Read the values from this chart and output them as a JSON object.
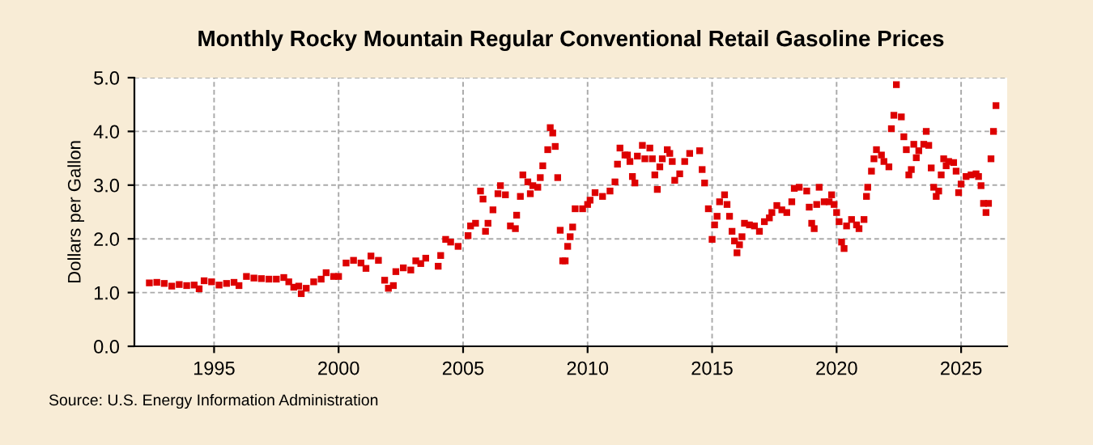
{
  "chart_data": {
    "type": "scatter",
    "title": "Monthly Rocky Mountain Regular Conventional Retail Gasoline Prices",
    "ylabel": "Dollars per Gallon",
    "annotations": [
      "Source: U.S. Energy Information Administration"
    ],
    "series": [
      {
        "color": "#dd0000",
        "x": [
          1992.4,
          1992.7,
          1993.0,
          1993.3,
          1993.6,
          1993.9,
          1994.2,
          1994.4,
          1994.6,
          1994.9,
          1995.2,
          1995.5,
          1995.8,
          1996.0,
          1996.3,
          1996.6,
          1996.9,
          1997.2,
          1997.5,
          1997.8,
          1998.0,
          1998.2,
          1998.4,
          1998.5,
          1998.7,
          1999.0,
          1999.3,
          1999.5,
          1999.8,
          2000.0,
          2000.3,
          2000.6,
          2000.9,
          2001.1,
          2001.3,
          2001.6,
          2001.85,
          2002.0,
          2002.2,
          2002.3,
          2002.6,
          2002.9,
          2003.1,
          2003.3,
          2003.5,
          2004.0,
          2004.1,
          2004.3,
          2004.5,
          2004.8,
          2005.2,
          2005.3,
          2005.5,
          2005.7,
          2005.8,
          2005.9,
          2006.0,
          2006.2,
          2006.4,
          2006.5,
          2006.7,
          2006.9,
          2007.1,
          2007.15,
          2007.3,
          2007.4,
          2007.6,
          2007.7,
          2007.8,
          2008.0,
          2008.1,
          2008.2,
          2008.4,
          2008.5,
          2008.6,
          2008.7,
          2008.8,
          2008.9,
          2009.0,
          2009.1,
          2009.2,
          2009.3,
          2009.4,
          2009.5,
          2009.8,
          2010.0,
          2010.1,
          2010.3,
          2010.6,
          2010.9,
          2011.1,
          2011.2,
          2011.3,
          2011.5,
          2011.6,
          2011.7,
          2011.8,
          2011.9,
          2012.0,
          2012.2,
          2012.3,
          2012.5,
          2012.6,
          2012.7,
          2012.8,
          2012.9,
          2013.0,
          2013.2,
          2013.3,
          2013.4,
          2013.5,
          2013.7,
          2013.9,
          2014.1,
          2014.5,
          2014.6,
          2014.7,
          2014.85,
          2015.0,
          2015.1,
          2015.2,
          2015.3,
          2015.5,
          2015.6,
          2015.7,
          2015.8,
          2015.9,
          2016.0,
          2016.1,
          2016.2,
          2016.3,
          2016.5,
          2016.7,
          2016.9,
          2017.1,
          2017.3,
          2017.4,
          2017.6,
          2017.8,
          2018.0,
          2018.2,
          2018.3,
          2018.5,
          2018.8,
          2018.9,
          2019.0,
          2019.1,
          2019.2,
          2019.3,
          2019.5,
          2019.7,
          2019.8,
          2019.9,
          2020.0,
          2020.1,
          2020.2,
          2020.3,
          2020.4,
          2020.6,
          2020.8,
          2020.9,
          2021.1,
          2021.2,
          2021.25,
          2021.4,
          2021.5,
          2021.6,
          2021.8,
          2021.9,
          2022.1,
          2022.2,
          2022.3,
          2022.4,
          2022.6,
          2022.7,
          2022.8,
          2022.9,
          2023.0,
          2023.1,
          2023.2,
          2023.3,
          2023.5,
          2023.6,
          2023.7,
          2023.8,
          2023.9,
          2024.0,
          2024.1,
          2024.2,
          2024.3,
          2024.4,
          2024.5,
          2024.7,
          2024.8,
          2024.9,
          2025.0,
          2025.2,
          2025.4,
          2025.6,
          2025.7,
          2025.8,
          2025.9,
          2026.0,
          2026.1,
          2026.2,
          2026.3,
          2026.4
        ],
        "values": [
          1.18,
          1.19,
          1.17,
          1.12,
          1.15,
          1.13,
          1.14,
          1.07,
          1.22,
          1.2,
          1.14,
          1.17,
          1.19,
          1.13,
          1.3,
          1.27,
          1.26,
          1.25,
          1.25,
          1.28,
          1.2,
          1.1,
          1.12,
          0.98,
          1.08,
          1.2,
          1.25,
          1.37,
          1.3,
          1.3,
          1.55,
          1.6,
          1.55,
          1.45,
          1.68,
          1.6,
          1.23,
          1.08,
          1.13,
          1.39,
          1.46,
          1.42,
          1.59,
          1.54,
          1.64,
          1.49,
          1.69,
          1.99,
          1.94,
          1.86,
          2.06,
          2.24,
          2.29,
          2.89,
          2.74,
          2.14,
          2.29,
          2.54,
          2.84,
          2.99,
          2.82,
          2.24,
          2.19,
          2.44,
          2.79,
          3.19,
          3.06,
          2.84,
          2.99,
          2.96,
          3.14,
          3.36,
          3.66,
          4.07,
          3.97,
          3.72,
          3.14,
          2.16,
          1.59,
          1.59,
          1.86,
          2.04,
          2.22,
          2.56,
          2.56,
          2.64,
          2.72,
          2.86,
          2.79,
          2.89,
          3.06,
          3.39,
          3.69,
          3.56,
          3.56,
          3.44,
          3.16,
          3.04,
          3.54,
          3.74,
          3.49,
          3.69,
          3.49,
          3.19,
          2.92,
          3.34,
          3.49,
          3.66,
          3.59,
          3.44,
          3.09,
          3.21,
          3.44,
          3.59,
          3.64,
          3.29,
          3.04,
          2.56,
          1.99,
          2.26,
          2.42,
          2.69,
          2.82,
          2.64,
          2.42,
          2.14,
          1.96,
          1.74,
          1.89,
          2.04,
          2.29,
          2.26,
          2.24,
          2.14,
          2.32,
          2.39,
          2.49,
          2.62,
          2.54,
          2.49,
          2.69,
          2.94,
          2.96,
          2.89,
          2.59,
          2.29,
          2.19,
          2.64,
          2.96,
          2.69,
          2.69,
          2.82,
          2.64,
          2.49,
          2.32,
          1.94,
          1.82,
          2.24,
          2.36,
          2.26,
          2.19,
          2.36,
          2.79,
          2.96,
          3.26,
          3.49,
          3.66,
          3.56,
          3.44,
          3.34,
          4.05,
          4.3,
          4.87,
          4.27,
          3.9,
          3.66,
          3.19,
          3.29,
          3.76,
          3.51,
          3.64,
          3.76,
          4.0,
          3.74,
          3.32,
          2.96,
          2.79,
          2.89,
          3.19,
          3.49,
          3.36,
          3.44,
          3.42,
          3.26,
          2.86,
          3.02,
          3.16,
          3.19,
          3.21,
          3.16,
          2.99,
          2.66,
          2.49,
          2.66,
          3.49,
          4.0,
          4.48
        ]
      }
    ],
    "xlim": [
      1991.8,
      2026.85
    ],
    "xticks": [
      1995,
      2000,
      2005,
      2010,
      2015,
      2020,
      2025
    ],
    "ylim": [
      0,
      5
    ],
    "yticks": [
      {
        "value": 0,
        "label": "0.0"
      },
      {
        "value": 1,
        "label": "1.0"
      },
      {
        "value": 2,
        "label": "2.0"
      },
      {
        "value": 3,
        "label": "3.0"
      },
      {
        "value": 4,
        "label": "4.0"
      },
      {
        "value": 5,
        "label": "5.0"
      }
    ],
    "grid": true,
    "marker": "square"
  }
}
